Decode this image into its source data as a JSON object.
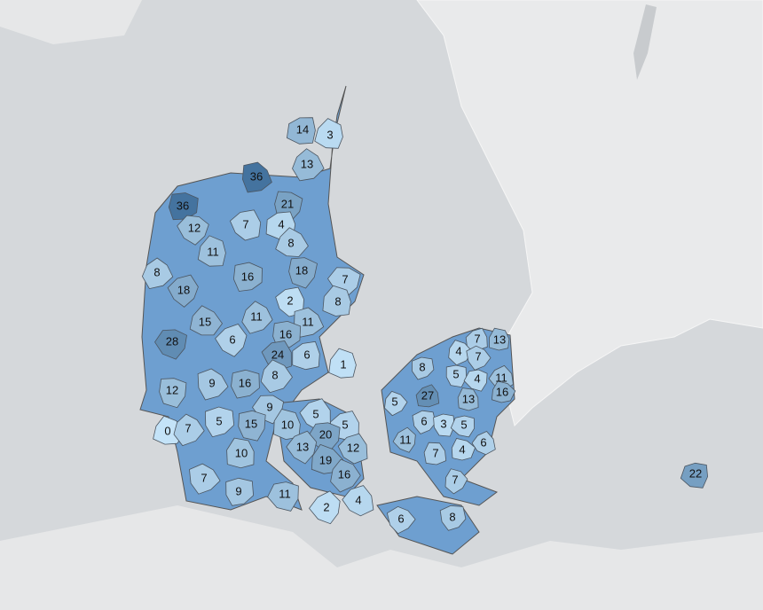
{
  "map": {
    "color_scale": [
      "#c4e3f8",
      "#44739f"
    ],
    "values": [
      14,
      3,
      13,
      36,
      36,
      21,
      12,
      7,
      4,
      11,
      8,
      8,
      16,
      18,
      7,
      18,
      2,
      8,
      15,
      11,
      11,
      16,
      28,
      6,
      24,
      6,
      1,
      8,
      9,
      16,
      12,
      9,
      5,
      5,
      10,
      0,
      7,
      5,
      15,
      20,
      13,
      12,
      10,
      19,
      16,
      7,
      9,
      11,
      2,
      4,
      7,
      13,
      4,
      7,
      8,
      5,
      4,
      11,
      27,
      13,
      16,
      5,
      6,
      3,
      5,
      11,
      6,
      7,
      4,
      7,
      6,
      8,
      22
    ]
  }
}
